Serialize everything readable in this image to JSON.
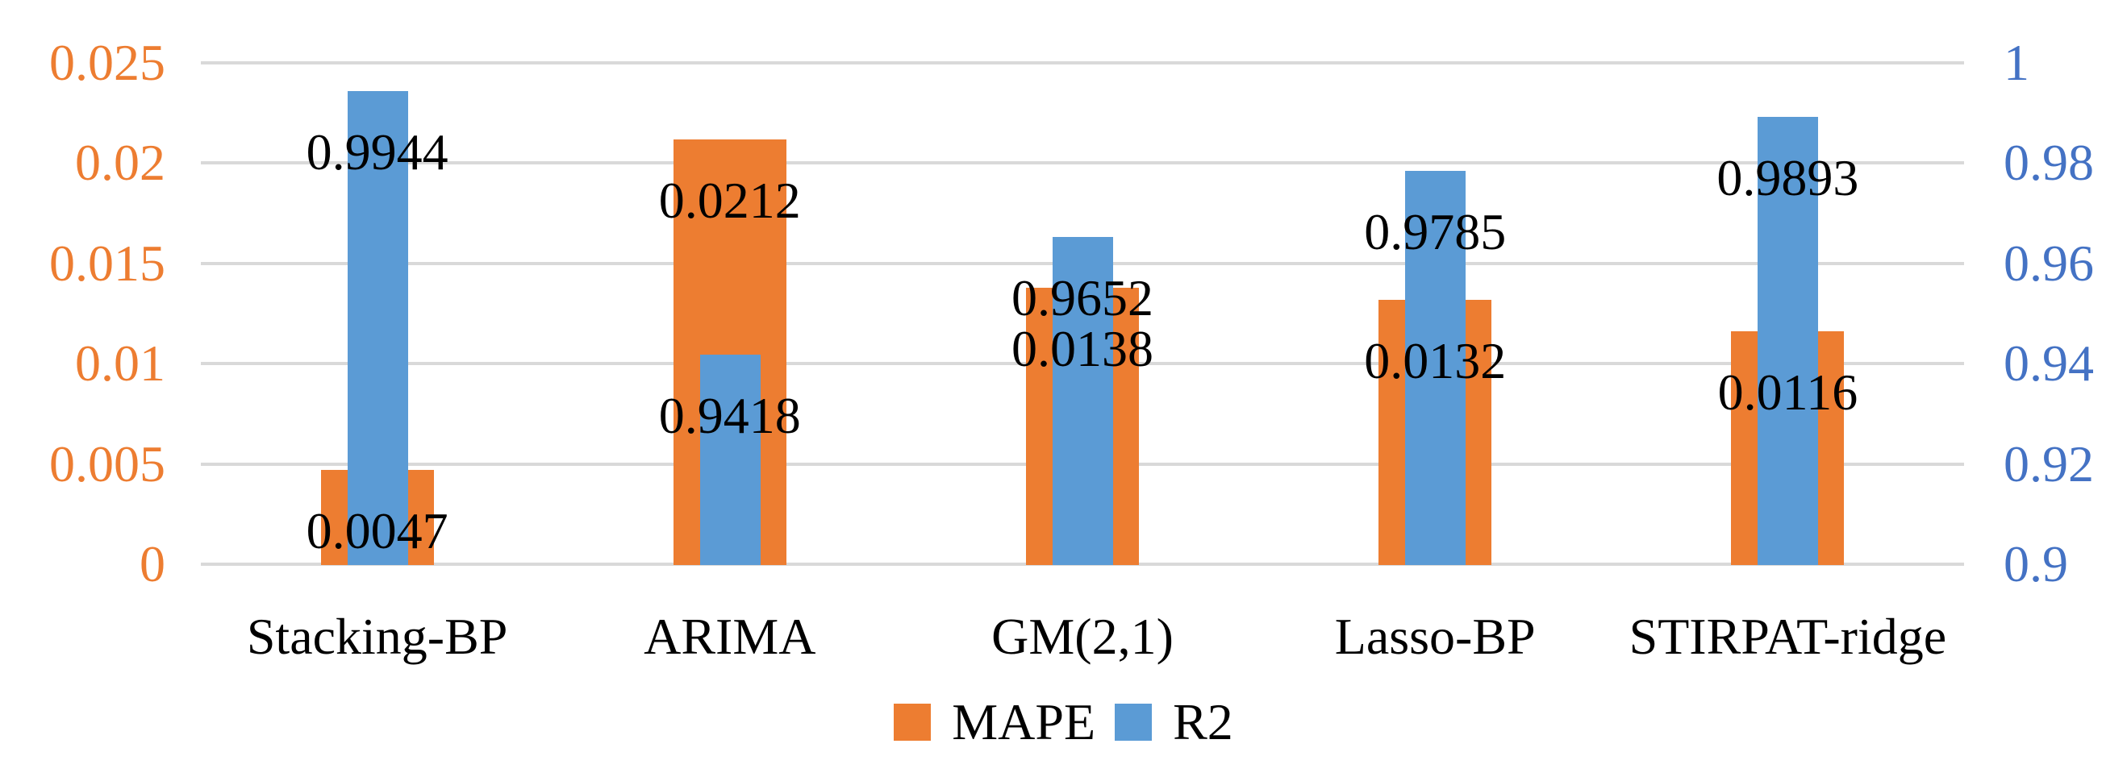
{
  "chart_data": {
    "type": "bar",
    "title": "",
    "categories": [
      "Stacking-BP",
      "ARIMA",
      "GM(2,1)",
      "Lasso-BP",
      "STIRPAT-ridge"
    ],
    "series": [
      {
        "name": "MAPE",
        "axis": "left",
        "color": "#ED7D31",
        "values": [
          0.0047,
          0.0212,
          0.0138,
          0.0132,
          0.0116
        ],
        "labels": [
          "0.0047",
          "0.0212",
          "0.0138",
          "0.0132",
          "0.0116"
        ]
      },
      {
        "name": "R2",
        "axis": "right",
        "color": "#5B9BD5",
        "values": [
          0.9944,
          0.9418,
          0.9652,
          0.9785,
          0.9893
        ],
        "labels": [
          "0.9944",
          "0.9418",
          "0.9652",
          "0.9785",
          "0.9893"
        ]
      }
    ],
    "left_axis": {
      "min": 0,
      "max": 0.025,
      "ticks": [
        "0",
        "0.005",
        "0.01",
        "0.015",
        "0.02",
        "0.025"
      ],
      "text_color": "#ED7D31"
    },
    "right_axis": {
      "min": 0.9,
      "max": 1,
      "ticks": [
        "0.9",
        "0.92",
        "0.94",
        "0.96",
        "0.98",
        "1"
      ],
      "text_color": "#4472C4"
    },
    "grid": true,
    "gridline_color": "#D9D9D9",
    "legend_position": "bottom",
    "legend": [
      {
        "label": "MAPE",
        "color": "#ED7D31"
      },
      {
        "label": "R2",
        "color": "#5B9BD5"
      }
    ],
    "data_label_color": "#000000"
  }
}
